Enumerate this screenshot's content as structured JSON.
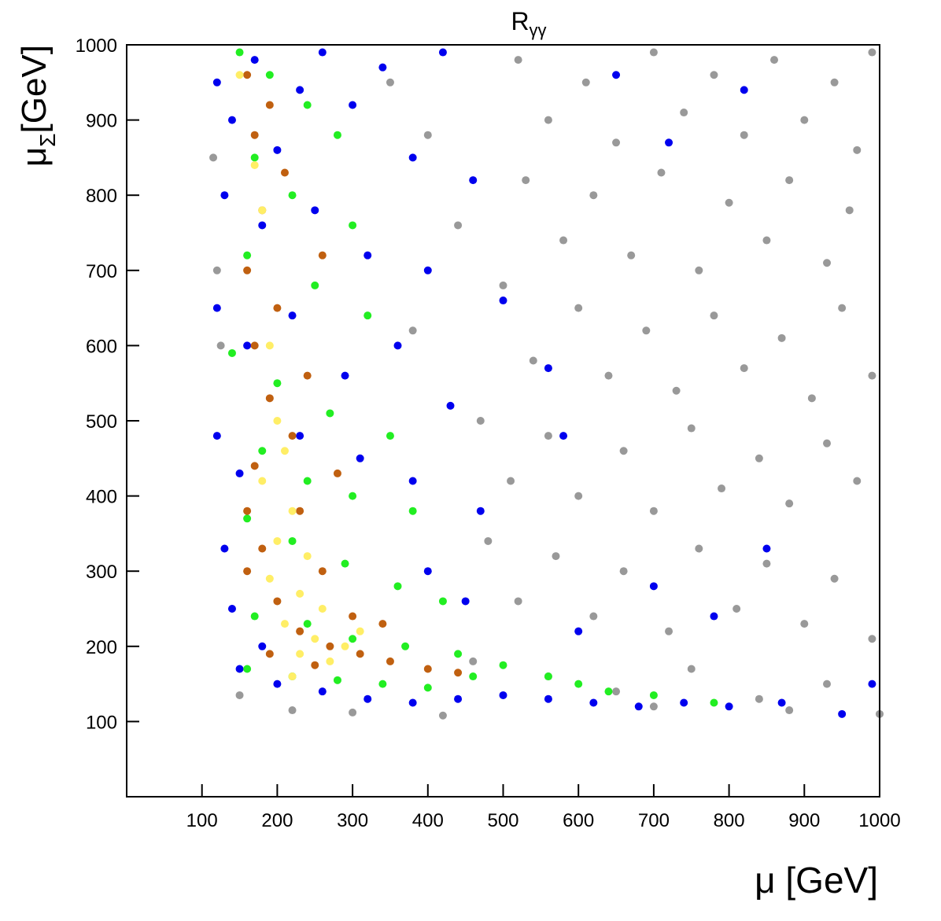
{
  "chart_data": {
    "type": "scatter",
    "title": "R",
    "title_subscript": "γγ",
    "x_label": "μ [GeV]",
    "y_label": "μ",
    "y_label_subscript": "Σ",
    "y_label_unit": "[GeV]",
    "xlim": [
      0,
      1000
    ],
    "ylim": [
      0,
      1000
    ],
    "xticks": [
      100,
      200,
      300,
      400,
      500,
      600,
      700,
      800,
      900,
      1000
    ],
    "yticks": [
      100,
      200,
      300,
      400,
      500,
      600,
      700,
      800,
      900,
      1000
    ],
    "series": [
      {
        "color": "#999999",
        "x": [
          520,
          610,
          700,
          780,
          860,
          940,
          990,
          560,
          650,
          740,
          820,
          900,
          970,
          530,
          620,
          710,
          800,
          880,
          960,
          580,
          670,
          760,
          850,
          930,
          500,
          600,
          690,
          780,
          870,
          950,
          540,
          640,
          730,
          820,
          910,
          990,
          470,
          560,
          660,
          750,
          840,
          930,
          510,
          600,
          700,
          790,
          880,
          970,
          480,
          570,
          660,
          760,
          850,
          940,
          520,
          620,
          720,
          810,
          900,
          990,
          460,
          560,
          650,
          750,
          840,
          930,
          1000,
          880,
          700,
          350,
          400,
          440,
          380,
          120,
          115,
          125,
          150,
          220,
          300,
          420
        ],
        "values": [
          980,
          950,
          990,
          960,
          980,
          950,
          990,
          900,
          870,
          910,
          880,
          900,
          860,
          820,
          800,
          830,
          790,
          820,
          780,
          740,
          720,
          700,
          740,
          710,
          680,
          650,
          620,
          640,
          610,
          650,
          580,
          560,
          540,
          570,
          530,
          560,
          500,
          480,
          460,
          490,
          450,
          470,
          420,
          400,
          380,
          410,
          390,
          420,
          340,
          320,
          300,
          330,
          310,
          290,
          260,
          240,
          220,
          250,
          230,
          210,
          180,
          160,
          140,
          170,
          130,
          150,
          110,
          115,
          120,
          950,
          880,
          760,
          620,
          700,
          850,
          600,
          135,
          115,
          112,
          108
        ]
      },
      {
        "color": "#0000ee",
        "x": [
          120,
          140,
          170,
          200,
          230,
          260,
          300,
          340,
          380,
          420,
          130,
          180,
          250,
          320,
          400,
          460,
          120,
          160,
          220,
          290,
          360,
          430,
          500,
          120,
          150,
          230,
          310,
          380,
          470,
          560,
          130,
          140,
          180,
          150,
          200,
          260,
          320,
          380,
          440,
          500,
          560,
          620,
          680,
          740,
          800,
          870,
          950,
          990,
          600,
          700,
          780,
          850,
          720,
          650,
          820,
          580,
          450,
          400
        ],
        "values": [
          950,
          900,
          980,
          860,
          940,
          990,
          920,
          970,
          850,
          990,
          800,
          760,
          780,
          720,
          700,
          820,
          650,
          600,
          640,
          560,
          600,
          520,
          660,
          480,
          430,
          480,
          450,
          420,
          380,
          570,
          330,
          250,
          200,
          170,
          150,
          140,
          130,
          125,
          130,
          135,
          130,
          125,
          120,
          125,
          120,
          125,
          110,
          150,
          220,
          280,
          240,
          330,
          870,
          960,
          940,
          480,
          260,
          300
        ]
      },
      {
        "color": "#22ee22",
        "x": [
          150,
          190,
          240,
          280,
          170,
          220,
          300,
          160,
          250,
          320,
          140,
          200,
          270,
          350,
          180,
          240,
          300,
          380,
          160,
          220,
          290,
          360,
          420,
          170,
          240,
          300,
          370,
          440,
          500,
          560,
          600,
          640,
          700,
          780,
          160,
          220,
          280,
          340,
          400,
          460
        ],
        "values": [
          990,
          960,
          920,
          880,
          850,
          800,
          760,
          720,
          680,
          640,
          590,
          550,
          510,
          480,
          460,
          420,
          400,
          380,
          370,
          340,
          310,
          280,
          260,
          240,
          230,
          210,
          200,
          190,
          175,
          160,
          150,
          140,
          135,
          125,
          170,
          160,
          155,
          150,
          145,
          160
        ]
      },
      {
        "color": "#c06010",
        "x": [
          160,
          190,
          170,
          210,
          180,
          160,
          200,
          170,
          190,
          220,
          170,
          160,
          180,
          160,
          200,
          230,
          270,
          310,
          350,
          400,
          440,
          190,
          250,
          300,
          340,
          260,
          230,
          280,
          240,
          260
        ],
        "values": [
          960,
          920,
          880,
          830,
          780,
          700,
          650,
          600,
          530,
          480,
          440,
          380,
          330,
          300,
          260,
          220,
          200,
          190,
          180,
          170,
          165,
          190,
          175,
          240,
          230,
          300,
          380,
          430,
          560,
          720
        ]
      },
      {
        "color": "#ffee66",
        "x": [
          150,
          170,
          180,
          190,
          200,
          210,
          180,
          220,
          200,
          240,
          190,
          230,
          260,
          210,
          250,
          290,
          230,
          270,
          310,
          220
        ],
        "values": [
          960,
          840,
          780,
          600,
          500,
          460,
          420,
          380,
          340,
          320,
          290,
          270,
          250,
          230,
          210,
          200,
          190,
          180,
          220,
          160
        ]
      }
    ]
  }
}
